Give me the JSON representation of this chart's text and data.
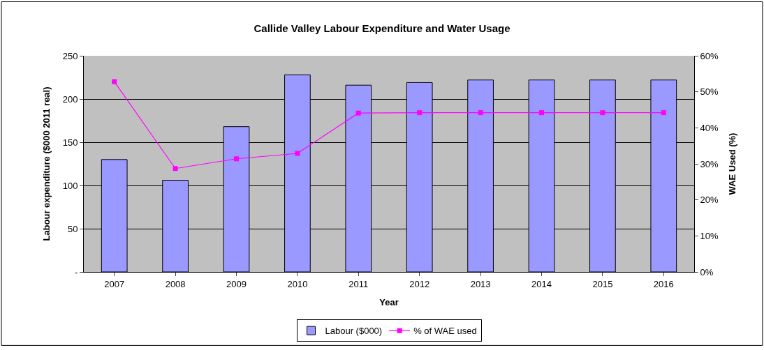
{
  "chart_data": {
    "type": "bar",
    "title": "Callide Valley Labour Expenditure and Water Usage",
    "xlabel": "Year",
    "ylabel": "Labour expenditure ($000 2011 real)",
    "y2label": "WAE Used (%)",
    "categories": [
      "2007",
      "2008",
      "2009",
      "2010",
      "2011",
      "2012",
      "2013",
      "2014",
      "2015",
      "2016"
    ],
    "series": [
      {
        "name": "Labour ($000)",
        "color": "#9999ff",
        "values": [
          130,
          106,
          168,
          228,
          216,
          219,
          222,
          222,
          222,
          222
        ]
      },
      {
        "name": "% of WAE used",
        "type": "line",
        "axis": "y2",
        "color": "#ff00ff",
        "marker": "square",
        "values": [
          52.8,
          28.7,
          31.4,
          32.9,
          44.1,
          44.2,
          44.2,
          44.2,
          44.2,
          44.2
        ]
      }
    ],
    "ylim": [
      0,
      250
    ],
    "yticks": [
      {
        "value": 0,
        "label": "-"
      },
      50,
      100,
      150,
      200,
      250
    ],
    "y2lim": [
      0,
      60
    ],
    "y2ticks": [
      {
        "value": 0,
        "label": "0%"
      },
      {
        "value": 10,
        "label": "10%"
      },
      {
        "value": 20,
        "label": "20%"
      },
      {
        "value": 30,
        "label": "30%"
      },
      {
        "value": 40,
        "label": "40%"
      },
      {
        "value": 50,
        "label": "50%"
      },
      {
        "value": 60,
        "label": "60%"
      }
    ],
    "grid": "y",
    "legend": "bottom"
  }
}
